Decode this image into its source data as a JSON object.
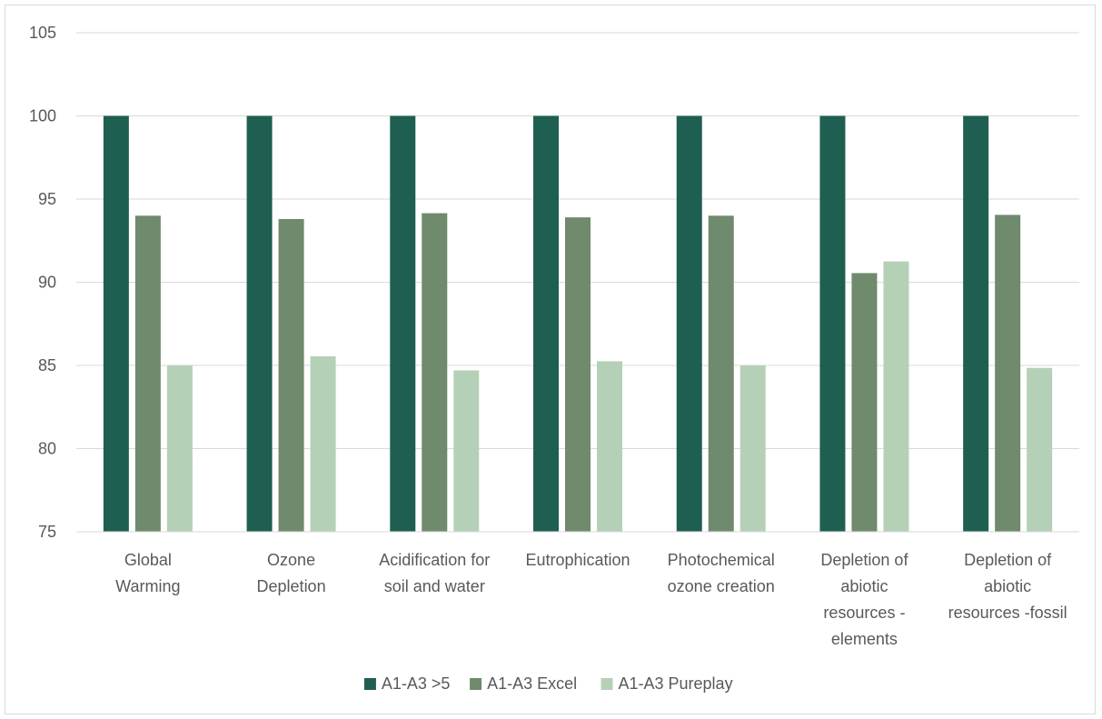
{
  "chart_data": {
    "type": "bar",
    "title": "",
    "xlabel": "",
    "ylabel": "",
    "ylim": [
      75,
      105
    ],
    "yticks": [
      75,
      80,
      85,
      90,
      95,
      100,
      105
    ],
    "grid": true,
    "legend_position": "bottom",
    "categories": [
      [
        "Global",
        "Warming"
      ],
      [
        "Ozone",
        "Depletion"
      ],
      [
        "Acidification for",
        "soil and water"
      ],
      [
        "Eutrophication"
      ],
      [
        "Photochemical",
        "ozone creation"
      ],
      [
        "Depletion of",
        "abiotic",
        "resources -",
        "elements"
      ],
      [
        "Depletion of",
        "abiotic",
        "resources -fossil"
      ]
    ],
    "series": [
      {
        "name": "A1-A3 >5",
        "color": "#1e5f51",
        "values": [
          100,
          100,
          100,
          100,
          100,
          100,
          100
        ]
      },
      {
        "name": "A1-A3 Excel",
        "color": "#6f8a6d",
        "values": [
          94.0,
          93.8,
          94.15,
          93.9,
          94.0,
          90.55,
          94.05
        ]
      },
      {
        "name": "A1-A3 Pureplay",
        "color": "#b4d1b8",
        "values": [
          85.0,
          85.55,
          84.7,
          85.25,
          85.0,
          91.25,
          84.85
        ]
      }
    ]
  }
}
